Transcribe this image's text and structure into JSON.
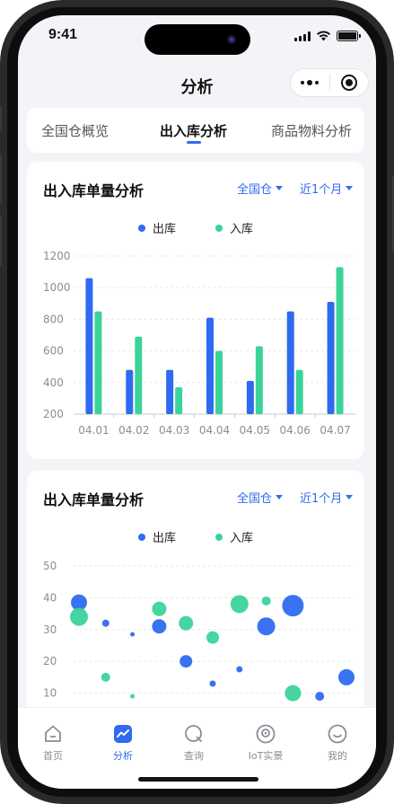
{
  "status_bar": {
    "time": "9:41"
  },
  "nav": {
    "title": "分析"
  },
  "tabs": [
    {
      "label": "全国仓概览",
      "active": false
    },
    {
      "label": "出入库分析",
      "active": true
    },
    {
      "label": "商品物料分析",
      "active": false
    }
  ],
  "cards": [
    {
      "title": "出入库单量分析",
      "filter_warehouse": "全国仓",
      "filter_period": "近1个月",
      "legend": [
        "出库",
        "入库"
      ]
    },
    {
      "title": "出入库单量分析",
      "filter_warehouse": "全国仓",
      "filter_period": "近1个月",
      "legend": [
        "出库",
        "入库"
      ]
    }
  ],
  "colors": {
    "accent": "#2f6bf0",
    "outbound": "#2f6bf0",
    "inbound": "#3cd39a"
  },
  "chart_data": [
    {
      "type": "bar",
      "categories": [
        "04.01",
        "04.02",
        "04.03",
        "04.04",
        "04.05",
        "04.06",
        "04.07"
      ],
      "series": [
        {
          "name": "出库",
          "values": [
            1060,
            480,
            480,
            810,
            410,
            850,
            910
          ]
        },
        {
          "name": "入库",
          "values": [
            850,
            690,
            370,
            600,
            630,
            480,
            1130
          ]
        }
      ],
      "yticks": [
        200,
        400,
        600,
        800,
        1000,
        1200
      ],
      "ylim": [
        200,
        1200
      ],
      "grid": true,
      "legend_position": "top"
    },
    {
      "type": "scatter",
      "series": [
        {
          "name": "出库",
          "points": [
            {
              "x": 1,
              "y": 38.5,
              "size": 9
            },
            {
              "x": 2,
              "y": 32,
              "size": 4
            },
            {
              "x": 3,
              "y": 28.5,
              "size": 2.5
            },
            {
              "x": 4,
              "y": 31,
              "size": 8
            },
            {
              "x": 5,
              "y": 20,
              "size": 7
            },
            {
              "x": 6,
              "y": 13,
              "size": 3.5
            },
            {
              "x": 7,
              "y": 17.5,
              "size": 3.5
            },
            {
              "x": 8,
              "y": 31,
              "size": 10
            },
            {
              "x": 9,
              "y": 37.5,
              "size": 12
            },
            {
              "x": 10,
              "y": 9,
              "size": 5
            },
            {
              "x": 11,
              "y": 15,
              "size": 9
            }
          ]
        },
        {
          "name": "入库",
          "points": [
            {
              "x": 1,
              "y": 34,
              "size": 10
            },
            {
              "x": 2,
              "y": 15,
              "size": 5
            },
            {
              "x": 3,
              "y": 9,
              "size": 2.5
            },
            {
              "x": 4,
              "y": 36.5,
              "size": 8
            },
            {
              "x": 5,
              "y": 32,
              "size": 8
            },
            {
              "x": 6,
              "y": 27.5,
              "size": 7
            },
            {
              "x": 7,
              "y": 38,
              "size": 10
            },
            {
              "x": 8,
              "y": 39,
              "size": 5
            },
            {
              "x": 9,
              "y": 10,
              "size": 9
            }
          ]
        }
      ],
      "yticks": [
        10,
        20,
        30,
        40,
        50
      ],
      "ylim": [
        0,
        50
      ],
      "grid": true,
      "legend_position": "top"
    }
  ],
  "tabbar": [
    {
      "label": "首页",
      "icon": "home-icon",
      "active": false
    },
    {
      "label": "分析",
      "icon": "analysis-icon",
      "active": true
    },
    {
      "label": "查询",
      "icon": "search-icon",
      "active": false
    },
    {
      "label": "IoT实景",
      "icon": "camera-icon",
      "active": false
    },
    {
      "label": "我的",
      "icon": "profile-icon",
      "active": false
    }
  ]
}
